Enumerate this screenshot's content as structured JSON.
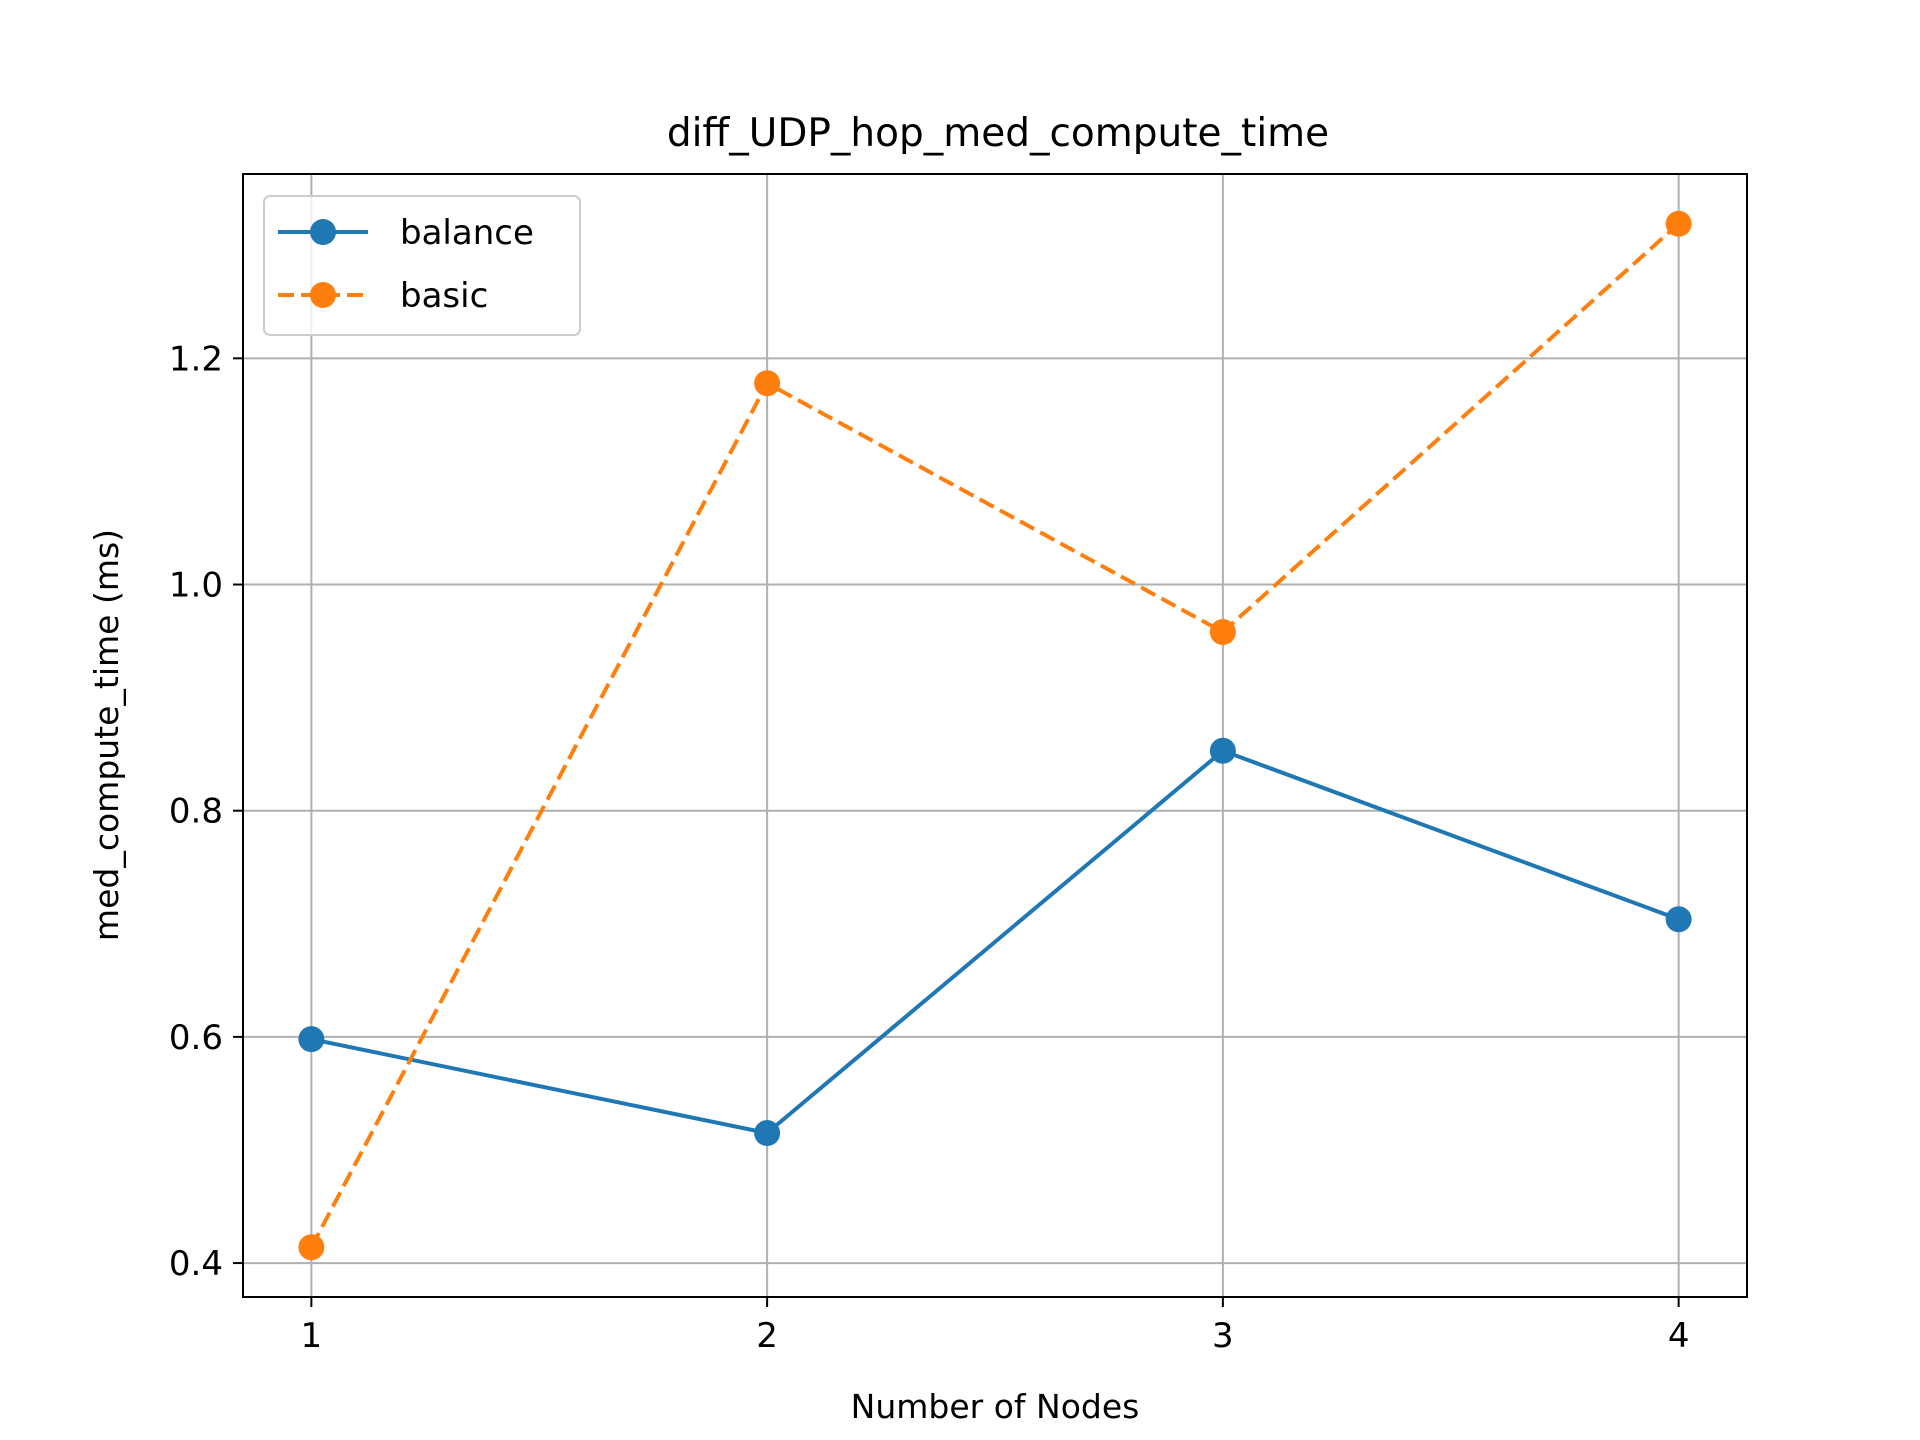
{
  "chart_data": {
    "type": "line",
    "title": "diff_UDP_hop_med_compute_time",
    "xlabel": "Number of Nodes",
    "ylabel": "med_compute_time (ms)",
    "x": [
      1,
      2,
      3,
      4
    ],
    "xticks": [
      "1",
      "2",
      "3",
      "4"
    ],
    "yticks": [
      "0.4",
      "0.6",
      "0.8",
      "1.0",
      "1.2"
    ],
    "xlim": [
      0.85,
      4.15
    ],
    "ylim": [
      0.37,
      1.363
    ],
    "grid": true,
    "legend_position": "upper-left",
    "series": [
      {
        "name": "balance",
        "values": [
          0.598,
          0.515,
          0.853,
          0.704
        ],
        "color": "#1f77b4",
        "linestyle": "solid",
        "marker": "circle"
      },
      {
        "name": "basic",
        "values": [
          0.414,
          1.178,
          0.958,
          1.319
        ],
        "color": "#ff7f0e",
        "linestyle": "dashed",
        "marker": "circle"
      }
    ]
  }
}
